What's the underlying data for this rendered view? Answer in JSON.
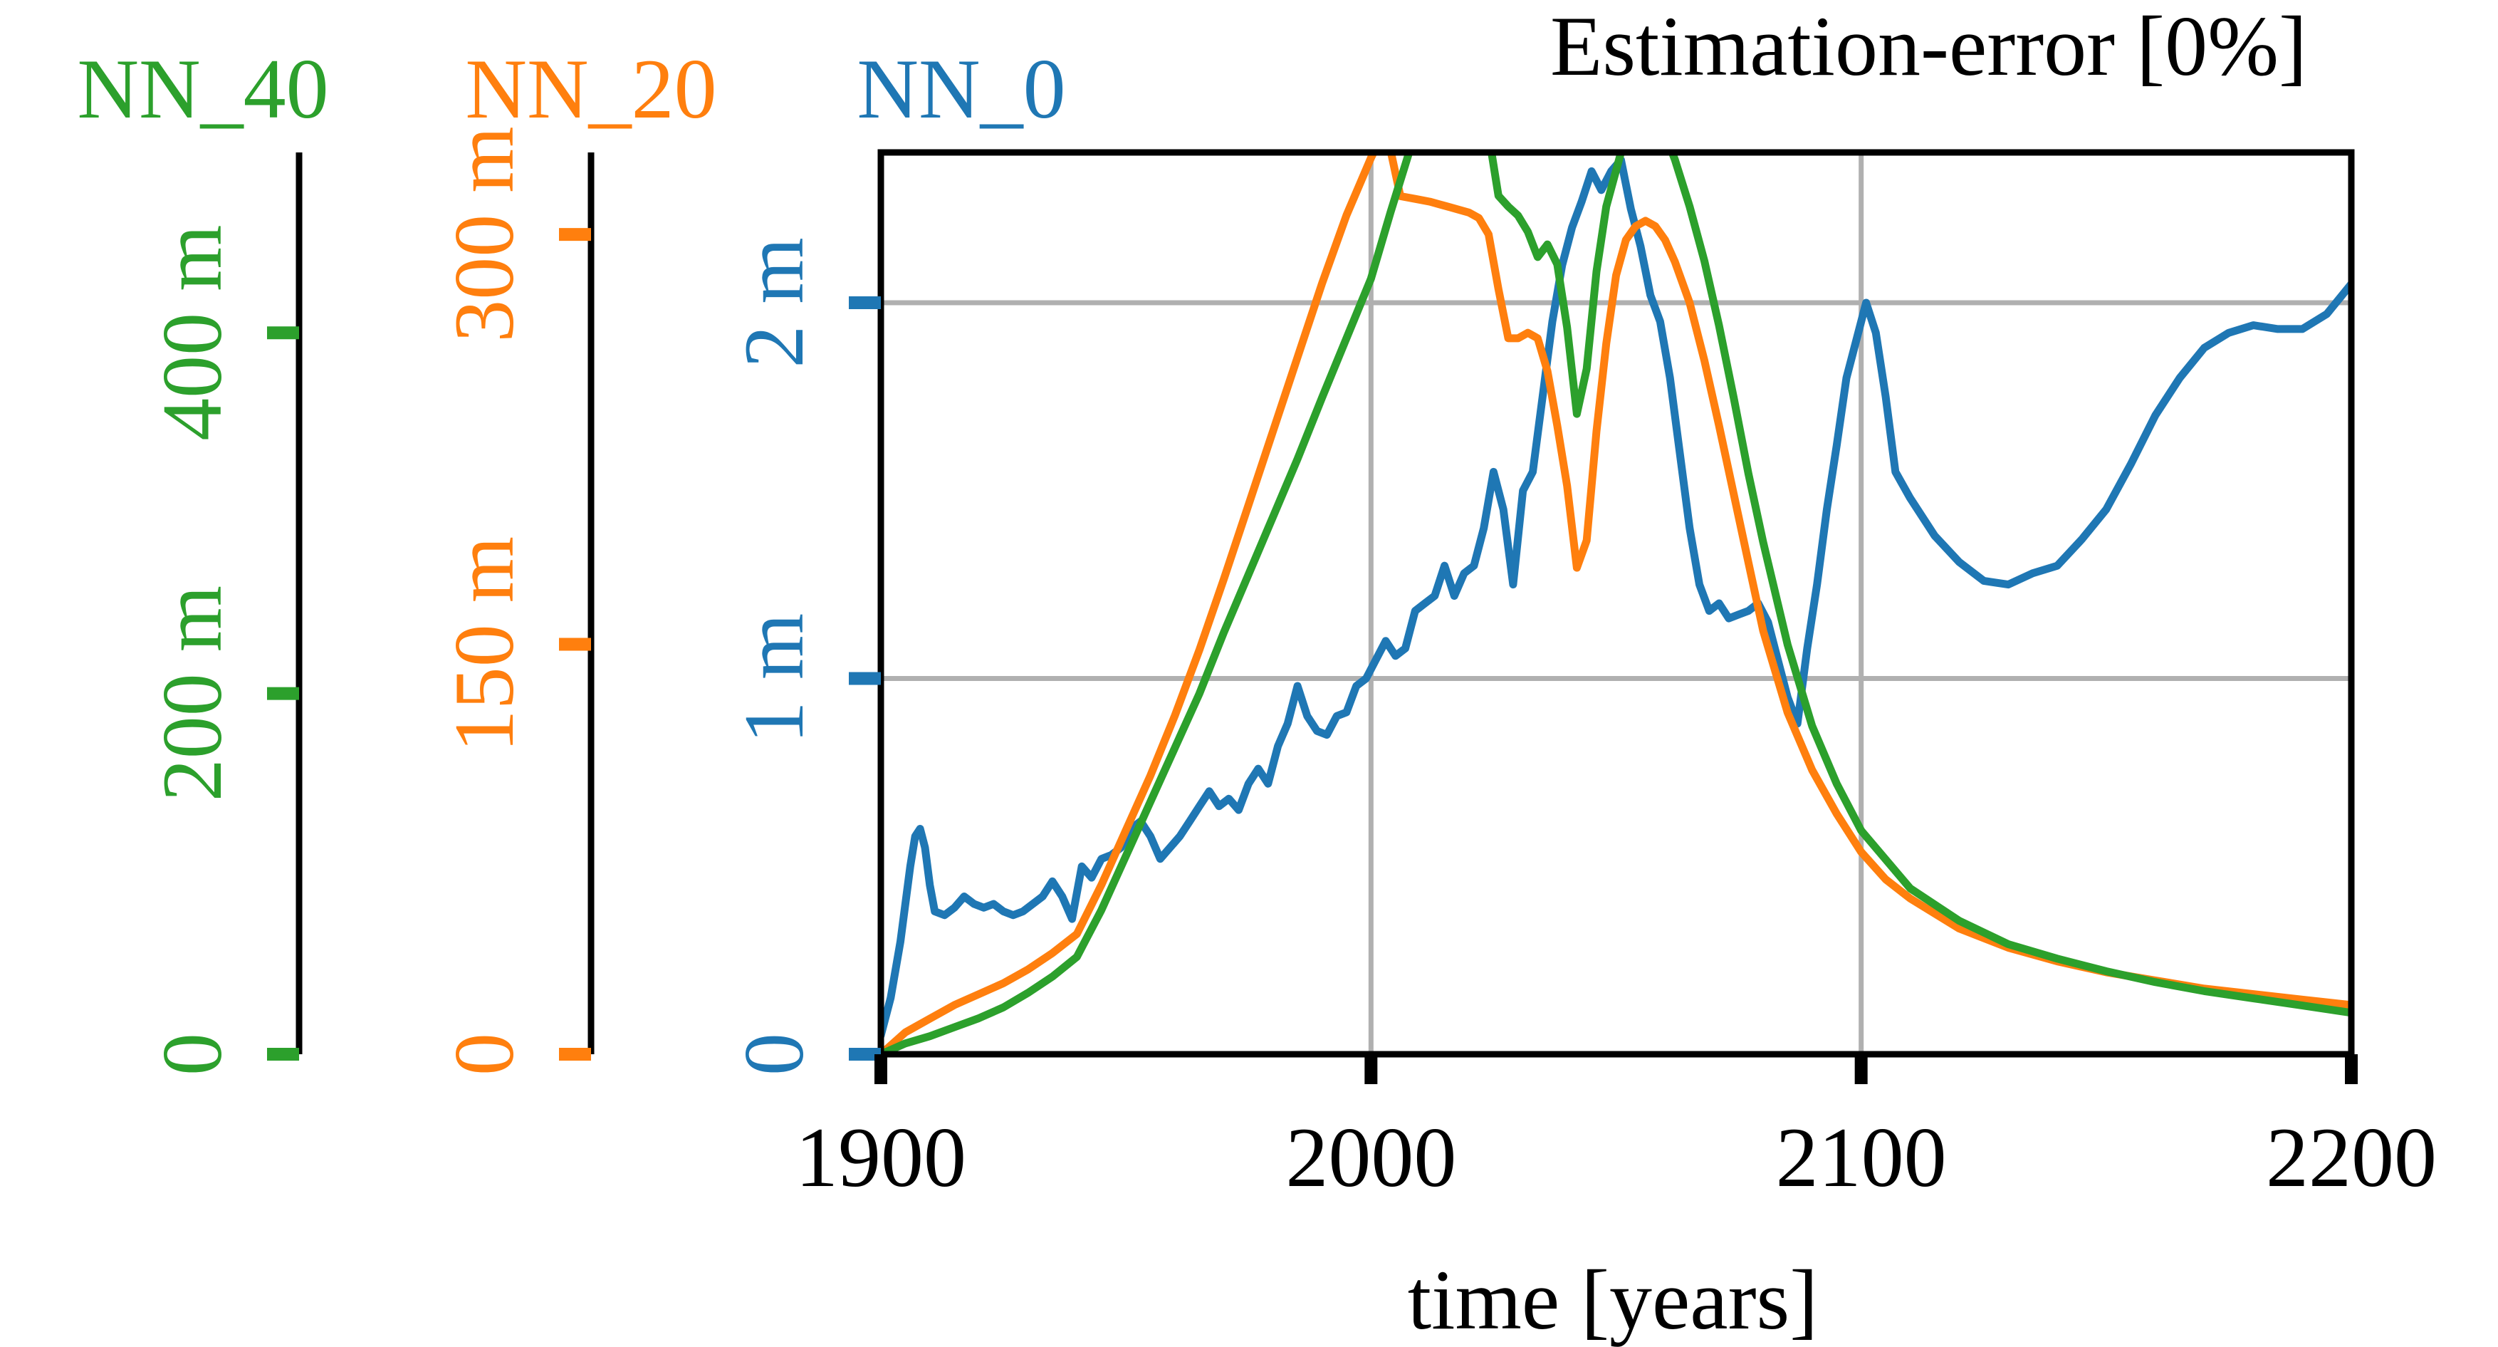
{
  "chart_data": {
    "type": "line",
    "title": "Estimation-error [0%]",
    "xlabel": "time [years]",
    "xlim": [
      1900,
      2200
    ],
    "x_ticks": [
      "1900",
      "2000",
      "2100",
      "2200"
    ],
    "grid": true,
    "colors": {
      "NN_0": "#1f77b4",
      "NN_20": "#ff7f0e",
      "NN_40": "#2ca02c"
    },
    "axes": [
      {
        "name": "NN_40",
        "color": "#2ca02c",
        "max": 500,
        "ticks": [
          0,
          200,
          400
        ],
        "tick_labels": [
          "0",
          "200 m",
          "400 m"
        ]
      },
      {
        "name": "NN_20",
        "color": "#ff7f0e",
        "max": 330,
        "ticks": [
          0,
          150,
          300
        ],
        "tick_labels": [
          "0",
          "150 m",
          "300 m"
        ]
      },
      {
        "name": "NN_0",
        "color": "#1f77b4",
        "max": 2.4,
        "ticks": [
          0,
          1,
          2
        ],
        "tick_labels": [
          "0",
          "1 m",
          "2 m"
        ]
      }
    ],
    "series": [
      {
        "name": "NN_0",
        "axis": "NN_0",
        "color": "#1f77b4",
        "x": [
          1900,
          1902,
          1904,
          1906,
          1907,
          1908,
          1909,
          1910,
          1911,
          1913,
          1915,
          1917,
          1919,
          1921,
          1923,
          1925,
          1927,
          1929,
          1931,
          1933,
          1935,
          1937,
          1939,
          1941,
          1943,
          1945,
          1947,
          1949,
          1951,
          1953,
          1955,
          1957,
          1959,
          1961,
          1963,
          1965,
          1967,
          1969,
          1971,
          1973,
          1975,
          1977,
          1979,
          1981,
          1983,
          1985,
          1987,
          1989,
          1991,
          1993,
          1995,
          1997,
          1999,
          2001,
          2003,
          2005,
          2007,
          2009,
          2011,
          2013,
          2015,
          2017,
          2019,
          2021,
          2023,
          2025,
          2027,
          2029,
          2031,
          2033,
          2035,
          2037,
          2039,
          2041,
          2043,
          2045,
          2047,
          2049,
          2051,
          2053,
          2055,
          2057,
          2059,
          2061,
          2063,
          2065,
          2067,
          2069,
          2071,
          2073,
          2075,
          2077,
          2079,
          2081,
          2083,
          2085,
          2087,
          2089,
          2091,
          2093,
          2095,
          2097,
          2099,
          2101,
          2103,
          2105,
          2107,
          2110,
          2115,
          2120,
          2125,
          2130,
          2135,
          2140,
          2145,
          2150,
          2155,
          2160,
          2165,
          2170,
          2175,
          2180,
          2185,
          2190,
          2195,
          2200
        ],
        "y": [
          0.05,
          0.15,
          0.3,
          0.5,
          0.58,
          0.6,
          0.55,
          0.45,
          0.38,
          0.37,
          0.39,
          0.42,
          0.4,
          0.39,
          0.4,
          0.38,
          0.37,
          0.38,
          0.4,
          0.42,
          0.46,
          0.42,
          0.36,
          0.5,
          0.47,
          0.52,
          0.53,
          0.55,
          0.6,
          0.62,
          0.58,
          0.52,
          0.55,
          0.58,
          0.62,
          0.66,
          0.7,
          0.66,
          0.68,
          0.65,
          0.72,
          0.76,
          0.72,
          0.82,
          0.88,
          0.98,
          0.9,
          0.86,
          0.85,
          0.9,
          0.91,
          0.98,
          1.0,
          1.05,
          1.1,
          1.06,
          1.08,
          1.18,
          1.2,
          1.22,
          1.3,
          1.22,
          1.28,
          1.3,
          1.4,
          1.55,
          1.45,
          1.25,
          1.5,
          1.55,
          1.75,
          1.95,
          2.1,
          2.2,
          2.27,
          2.35,
          2.3,
          2.35,
          2.38,
          2.25,
          2.15,
          2.02,
          1.95,
          1.8,
          1.6,
          1.4,
          1.25,
          1.18,
          1.2,
          1.16,
          1.17,
          1.18,
          1.2,
          1.15,
          1.05,
          0.95,
          0.88,
          1.08,
          1.25,
          1.45,
          1.62,
          1.8,
          1.9,
          2.0,
          1.92,
          1.75,
          1.55,
          1.48,
          1.38,
          1.31,
          1.26,
          1.25,
          1.28,
          1.3,
          1.37,
          1.45,
          1.57,
          1.7,
          1.8,
          1.88,
          1.92,
          1.94,
          1.93,
          1.93,
          1.97,
          2.05
        ]
      },
      {
        "name": "NN_20",
        "axis": "NN_20",
        "color": "#ff7f0e",
        "x": [
          1900,
          1905,
          1910,
          1915,
          1920,
          1925,
          1930,
          1935,
          1940,
          1945,
          1950,
          1955,
          1960,
          1965,
          1970,
          1975,
          1980,
          1985,
          1990,
          1995,
          2000,
          2003,
          2006,
          2009,
          2012,
          2014,
          2016,
          2018,
          2020,
          2022,
          2024,
          2026,
          2028,
          2030,
          2032,
          2034,
          2036,
          2038,
          2040,
          2042,
          2044,
          2046,
          2048,
          2050,
          2052,
          2054,
          2056,
          2058,
          2060,
          2062,
          2065,
          2068,
          2071,
          2074,
          2077,
          2080,
          2085,
          2090,
          2095,
          2100,
          2105,
          2110,
          2120,
          2130,
          2140,
          2150,
          2160,
          2170,
          2180,
          2190,
          2200
        ],
        "y": [
          0,
          8,
          13,
          18,
          22,
          26,
          31,
          37,
          44,
          62,
          82,
          102,
          124,
          148,
          174,
          201,
          228,
          255,
          282,
          307,
          328,
          339,
          314,
          313,
          312,
          311,
          310,
          309,
          308,
          306,
          300,
          280,
          262,
          262,
          264,
          262,
          250,
          230,
          208,
          178,
          188,
          228,
          260,
          285,
          298,
          303,
          305,
          303,
          298,
          290,
          275,
          254,
          230,
          205,
          180,
          155,
          125,
          104,
          88,
          74,
          64,
          57,
          46,
          39,
          34,
          30,
          27,
          24,
          22,
          20,
          18
        ]
      },
      {
        "name": "NN_40",
        "axis": "NN_40",
        "color": "#2ca02c",
        "x": [
          1900,
          1905,
          1910,
          1915,
          1920,
          1925,
          1930,
          1935,
          1940,
          1945,
          1950,
          1955,
          1960,
          1965,
          1970,
          1975,
          1980,
          1985,
          1990,
          1995,
          2000,
          2004,
          2008,
          2011,
          2014,
          2016,
          2018,
          2020,
          2022,
          2024,
          2026,
          2028,
          2030,
          2032,
          2034,
          2036,
          2038,
          2040,
          2042,
          2044,
          2046,
          2048,
          2050,
          2052,
          2054,
          2056,
          2058,
          2060,
          2062,
          2065,
          2068,
          2071,
          2074,
          2077,
          2080,
          2085,
          2090,
          2095,
          2100,
          2110,
          2120,
          2130,
          2140,
          2150,
          2160,
          2170,
          2180,
          2190,
          2200
        ],
        "y": [
          0,
          6,
          10,
          15,
          20,
          26,
          34,
          43,
          54,
          80,
          110,
          140,
          170,
          200,
          234,
          266,
          298,
          330,
          364,
          397,
          430,
          467,
          502,
          530,
          553,
          542,
          544,
          546,
          540,
          510,
          476,
          470,
          465,
          456,
          442,
          449,
          438,
          403,
          355,
          380,
          434,
          470,
          490,
          510,
          522,
          522,
          518,
          510,
          496,
          470,
          440,
          404,
          364,
          322,
          284,
          227,
          182,
          150,
          124,
          92,
          74,
          61,
          53,
          46,
          40,
          35,
          31,
          27,
          23
        ]
      }
    ]
  }
}
